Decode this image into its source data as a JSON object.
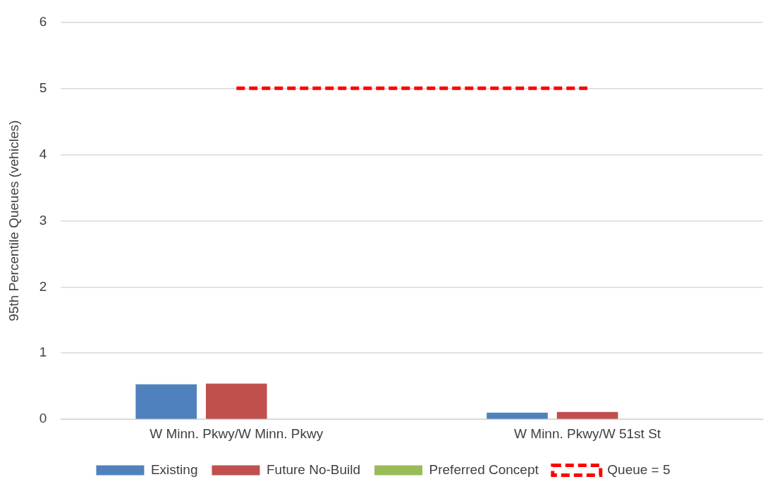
{
  "chart_data": {
    "type": "bar",
    "ylabel": "95th Percentile Queues (vehicles)",
    "categories": [
      "W Minn. Pkwy/W Minn. Pkwy",
      "W Minn. Pkwy/W 51st St"
    ],
    "series": [
      {
        "name": "Existing",
        "color": "#4f81bd",
        "values": [
          0.53,
          0.1
        ]
      },
      {
        "name": "Future No-Build",
        "color": "#c0504d",
        "values": [
          0.54,
          0.11
        ]
      },
      {
        "name": "Preferred Concept",
        "color": "#9bbb59",
        "values": [
          0,
          0
        ]
      },
      {
        "name": "Queue = 5",
        "type": "line",
        "color": "#ff0000",
        "line_style": "dashed",
        "marker": "none",
        "values": [
          5,
          5
        ]
      }
    ],
    "ylim": [
      0,
      6
    ],
    "yticks": [
      0,
      1,
      2,
      3,
      4,
      5,
      6
    ],
    "grid": "y",
    "legend": "bottom"
  }
}
